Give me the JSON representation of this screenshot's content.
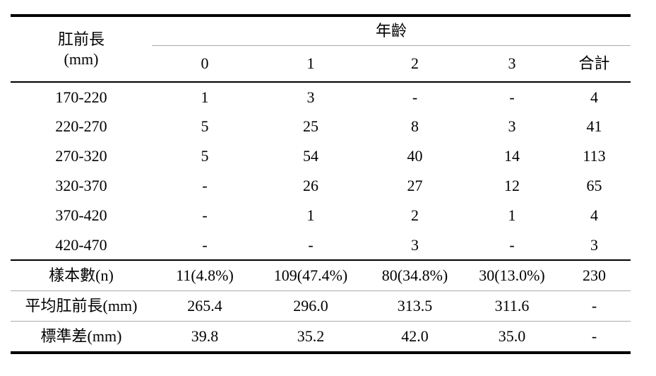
{
  "table": {
    "row_header": {
      "line1": "肛前長",
      "line2": "(mm)"
    },
    "group_header": "年齡",
    "age_columns": [
      "0",
      "1",
      "2",
      "3",
      "合計"
    ],
    "rows": [
      {
        "label": "170-220",
        "values": [
          "1",
          "3",
          "-",
          "-",
          "4"
        ]
      },
      {
        "label": "220-270",
        "values": [
          "5",
          "25",
          "8",
          "3",
          "41"
        ]
      },
      {
        "label": "270-320",
        "values": [
          "5",
          "54",
          "40",
          "14",
          "113"
        ]
      },
      {
        "label": "320-370",
        "values": [
          "-",
          "26",
          "27",
          "12",
          "65"
        ]
      },
      {
        "label": "370-420",
        "values": [
          "-",
          "1",
          "2",
          "1",
          "4"
        ]
      },
      {
        "label": "420-470",
        "values": [
          "-",
          "-",
          "3",
          "-",
          "3"
        ]
      }
    ],
    "summary_rows": [
      {
        "label": "樣本數(n)",
        "values": [
          "11(4.8%)",
          "109(47.4%)",
          "80(34.8%)",
          "30(13.0%)",
          "230"
        ]
      },
      {
        "label": "平均肛前長(mm)",
        "values": [
          "265.4",
          "296.0",
          "313.5",
          "311.6",
          "-"
        ]
      },
      {
        "label": "標準差(mm)",
        "values": [
          "39.8",
          "35.2",
          "42.0",
          "35.0",
          "-"
        ]
      }
    ]
  },
  "colors": {
    "text": "#000000",
    "background": "#ffffff",
    "thick_rule": "#000000",
    "thin_rule": "#ababab"
  }
}
